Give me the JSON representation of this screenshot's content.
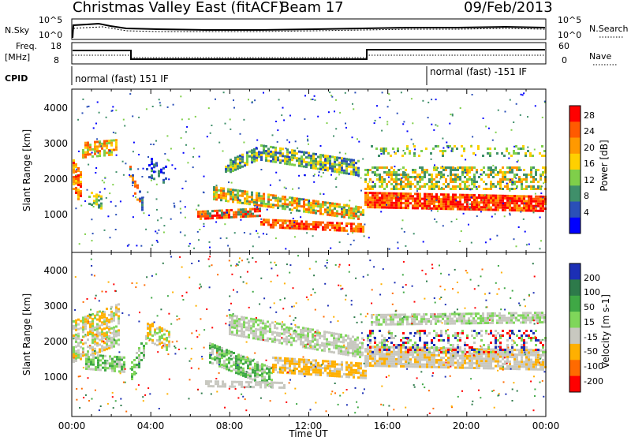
{
  "header": {
    "title": "Christmas Valley East (fitACF)",
    "beam": "Beam 17",
    "date": "09/Feb/2013"
  },
  "sky_panel": {
    "left_label": "N.Sky",
    "right_label": "N.Search",
    "left_ticks": [
      "10^5",
      "10^0"
    ],
    "right_ticks": [
      "10^5",
      "10^0"
    ]
  },
  "freq_panel": {
    "left_label_1": "Freq.",
    "left_label_2": "[MHz]",
    "right_label": "Nave",
    "left_ticks": [
      "18",
      "8"
    ],
    "right_ticks": [
      "60",
      "0"
    ]
  },
  "cpid": {
    "label": "CPID",
    "segments": [
      "normal (fast) 151 IF",
      "normal (fast) -151 IF"
    ]
  },
  "chart_data": [
    {
      "type": "heatmap",
      "name": "power",
      "ylabel": "Slant Range [km]",
      "yticks": [
        "1000",
        "2000",
        "3000",
        "4000"
      ],
      "colorbar_label": "Power [dB]",
      "colorbar_ticks": [
        "4",
        "8",
        "12",
        "16",
        "20",
        "24",
        "28"
      ],
      "colors": [
        "#0000ff",
        "#2a4fb8",
        "#3f8f6a",
        "#7fcf4a",
        "#ffd000",
        "#ff9900",
        "#ff5a00",
        "#ff0000"
      ]
    },
    {
      "type": "heatmap",
      "name": "velocity",
      "ylabel": "Slant Range [km]",
      "yticks": [
        "1000",
        "2000",
        "3000",
        "4000"
      ],
      "colorbar_label": "Velocity [m s-1]",
      "colorbar_ticks": [
        "200",
        "100",
        "50",
        "15",
        "-15",
        "-50",
        "-100",
        "-200"
      ],
      "colors": [
        "#1c2fb5",
        "#2d7a4a",
        "#3fa845",
        "#7fd65a",
        "#c8c8c0",
        "#ffb000",
        "#ff6a00",
        "#ff0000"
      ]
    }
  ],
  "time_axis": {
    "label": "Time UT",
    "ticks": [
      "00:00",
      "04:00",
      "08:00",
      "12:00",
      "16:00",
      "20:00",
      "00:00"
    ]
  }
}
